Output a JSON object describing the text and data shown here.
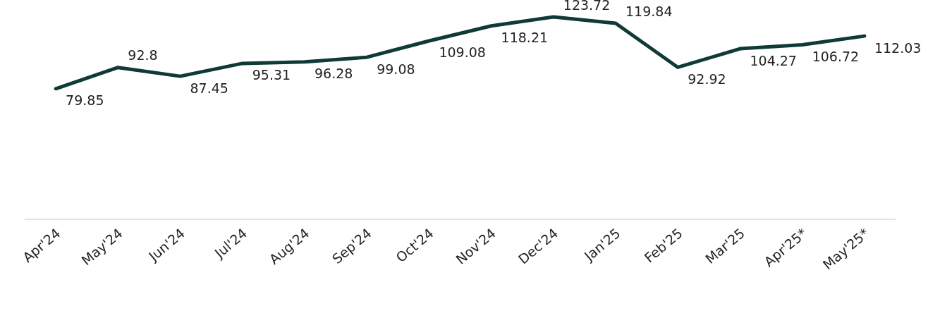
{
  "chart_data": {
    "type": "line",
    "categories": [
      "Apr'24",
      "May'24",
      "Jun'24",
      "Jul'24",
      "Aug'24",
      "Sep'24",
      "Oct'24",
      "Nov'24",
      "Dec'24",
      "Jan'25",
      "Feb'25",
      "Mar'25",
      "Apr'25*",
      "May'25*"
    ],
    "series": [
      {
        "color": "#0f3a36",
        "values": [
          79.85,
          92.8,
          87.45,
          95.31,
          96.28,
          99.08,
          109.08,
          118.21,
          123.72,
          119.84,
          92.92,
          104.27,
          106.72,
          112.03
        ]
      }
    ],
    "data_labels": true,
    "tick_labels": "x",
    "marker": "none"
  }
}
